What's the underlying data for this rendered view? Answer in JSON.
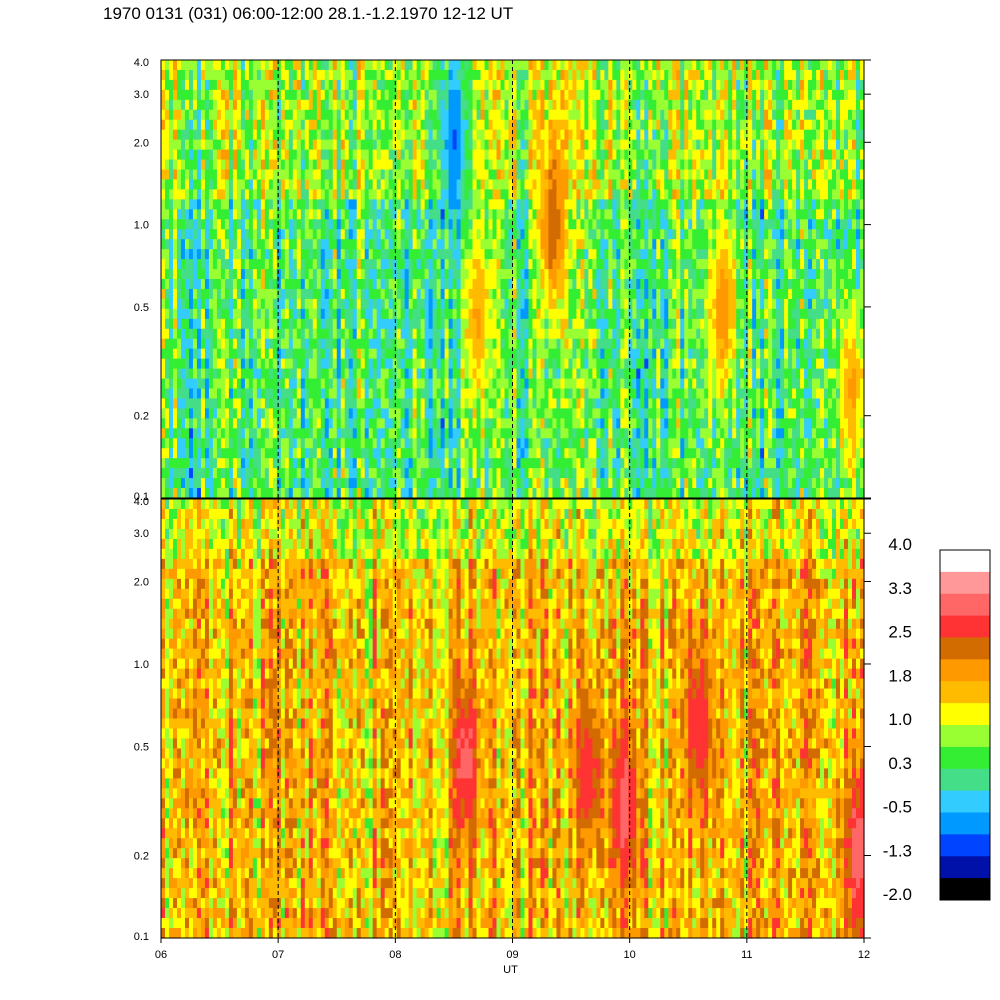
{
  "title": "1970 0131 (031) 06:00-12:00 28.1.-1.2.1970  12-12 UT",
  "chart_data": {
    "type": "heatmap",
    "panels": [
      {
        "name": "",
        "ylim": [
          0.1,
          4.0
        ],
        "yscale": "log",
        "yticks": [
          "0.1",
          "0.2",
          "0.5",
          "1.0",
          "2.0",
          "3.0",
          "4.0"
        ],
        "ytick_values": [
          0.1,
          0.2,
          0.5,
          1.0,
          2.0,
          3.0,
          4.0
        ],
        "base_level": 0.3,
        "features": [
          {
            "x": 8.5,
            "y": 2.0,
            "value": -0.9
          },
          {
            "x": 8.7,
            "y": 0.45,
            "value": 1.8
          },
          {
            "x": 9.35,
            "y": 1.0,
            "value": 2.5
          },
          {
            "x": 10.8,
            "y": 0.5,
            "value": 2.0
          },
          {
            "x": 11.9,
            "y": 0.25,
            "value": 1.8
          }
        ]
      },
      {
        "name": "",
        "ylim": [
          0.1,
          4.0
        ],
        "yscale": "log",
        "yticks": [
          "0.1",
          "0.2",
          "0.5",
          "1.0",
          "2.0",
          "3.0",
          "4.0"
        ],
        "ytick_values": [
          0.1,
          0.2,
          0.5,
          1.0,
          2.0,
          3.0,
          4.0
        ],
        "base_level": 1.6,
        "features": [
          {
            "x": 8.6,
            "y": 0.45,
            "value": 3.0
          },
          {
            "x": 9.65,
            "y": 0.4,
            "value": 2.8
          },
          {
            "x": 9.95,
            "y": 0.3,
            "value": 3.0
          },
          {
            "x": 10.6,
            "y": 0.6,
            "value": 2.8
          },
          {
            "x": 11.95,
            "y": 0.2,
            "value": 3.1
          }
        ]
      }
    ],
    "x": {
      "label": "UT",
      "range": [
        6,
        12
      ],
      "ticks": [
        "06",
        "07",
        "08",
        "09",
        "10",
        "11",
        "12"
      ],
      "tick_values": [
        6,
        7,
        8,
        9,
        10,
        11,
        12
      ],
      "dashed_lines": [
        7,
        8,
        9,
        10,
        11
      ]
    },
    "colorbar": {
      "labels": [
        "4.0",
        "3.3",
        "2.5",
        "1.8",
        "1.0",
        "0.3",
        "-0.5",
        "-1.3",
        "-2.0"
      ],
      "range": [
        -2.0,
        4.0
      ],
      "colors": [
        "#ffffff",
        "#ff9999",
        "#ff6666",
        "#ff3333",
        "#d26b00",
        "#ff9900",
        "#ffbb00",
        "#ffff00",
        "#99ff33",
        "#33ee33",
        "#44dd88",
        "#33ccff",
        "#0099ff",
        "#0044ff",
        "#0011aa",
        "#000000"
      ]
    }
  }
}
